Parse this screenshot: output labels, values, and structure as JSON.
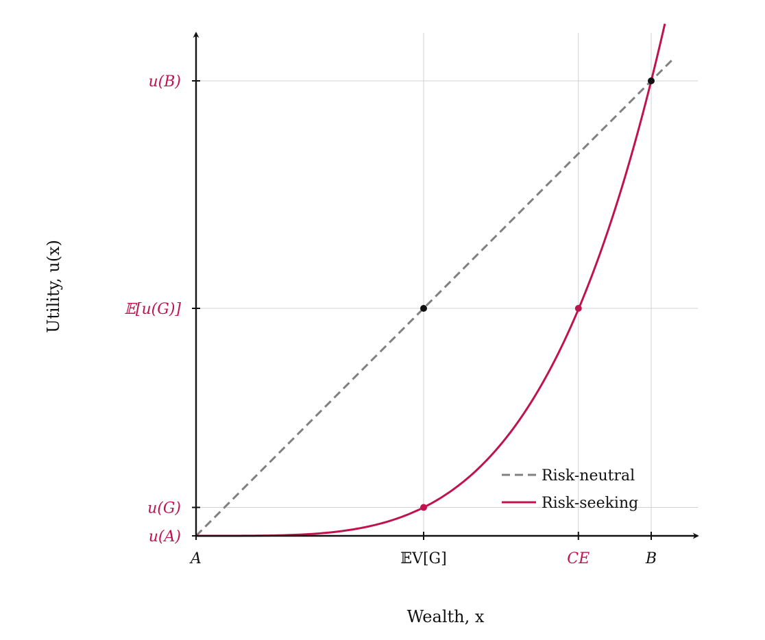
{
  "chart_data": {
    "type": "line",
    "xlabel": "Wealth, x",
    "ylabel": "Utility, u(x)",
    "xlim": [
      0,
      1.05
    ],
    "ylim": [
      0,
      1.1
    ],
    "grid": true,
    "legend_position": "bottom-right",
    "accent_color": "#c0134e",
    "neutral_color": "#808080",
    "x_ticks": [
      {
        "value": 0,
        "label": "A",
        "color": "#111111",
        "italic": true
      },
      {
        "value": 0.5,
        "label": "𝔼V[G]",
        "color": "#111111",
        "italic": false
      },
      {
        "value": 0.84,
        "label": "CE",
        "color": "#c0134e",
        "italic": true
      },
      {
        "value": 1.0,
        "label": "B",
        "color": "#111111",
        "italic": true
      }
    ],
    "y_ticks": [
      {
        "value": 0,
        "label": "u(A)",
        "color": "#c0134e"
      },
      {
        "value": 0.0625,
        "label": "u(G)",
        "color": "#c0134e"
      },
      {
        "value": 0.5,
        "label": "𝔼[u(G)]",
        "color": "#c0134e"
      },
      {
        "value": 1.0,
        "label": "u(B)",
        "color": "#c0134e"
      }
    ],
    "series": [
      {
        "name": "Risk-neutral",
        "style": "dashed",
        "color": "#808080",
        "x": [
          0,
          1.05
        ],
        "y": [
          0,
          1.05
        ]
      },
      {
        "name": "Risk-seeking",
        "style": "solid",
        "color": "#c0134e",
        "function": "x^4",
        "x": [
          0,
          0.1,
          0.2,
          0.3,
          0.4,
          0.5,
          0.6,
          0.7,
          0.8,
          0.84,
          0.9,
          1.0,
          1.03
        ],
        "y": [
          0,
          0.0001,
          0.0016,
          0.0081,
          0.0256,
          0.0625,
          0.1296,
          0.2401,
          0.4096,
          0.5,
          0.6561,
          1.0,
          1.1
        ]
      }
    ],
    "points": [
      {
        "x": 0.5,
        "y": 0.5,
        "color": "#111111"
      },
      {
        "x": 1.0,
        "y": 1.0,
        "color": "#111111"
      },
      {
        "x": 0.5,
        "y": 0.0625,
        "color": "#c0134e"
      },
      {
        "x": 0.84,
        "y": 0.5,
        "color": "#c0134e"
      }
    ]
  }
}
